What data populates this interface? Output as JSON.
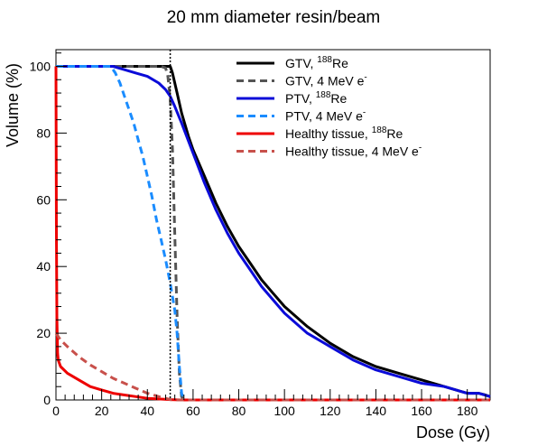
{
  "chart_data": {
    "type": "line",
    "title": "20 mm diameter resin/beam",
    "xlabel": "Dose (Gy)",
    "ylabel": "Volume (%)",
    "xlim": [
      0,
      190
    ],
    "ylim": [
      0,
      105
    ],
    "x_ticks": [
      0,
      20,
      40,
      60,
      80,
      100,
      120,
      140,
      160,
      180
    ],
    "y_ticks": [
      0,
      20,
      40,
      60,
      80,
      100
    ],
    "legend_position": "top-right",
    "reference_line": {
      "x": 50,
      "style": "dotted",
      "color": "#000000"
    },
    "series": [
      {
        "name": "GTV, ¹⁸⁸Re",
        "legend": {
          "pre": "GTV, ",
          "sup": "188",
          "post": "Re"
        },
        "color": "#000000",
        "dash": "solid",
        "points": [
          [
            0,
            100
          ],
          [
            49,
            100
          ],
          [
            50,
            100
          ],
          [
            51,
            98
          ],
          [
            53,
            92
          ],
          [
            55,
            86
          ],
          [
            58,
            79
          ],
          [
            60,
            75
          ],
          [
            65,
            67
          ],
          [
            70,
            59
          ],
          [
            75,
            52
          ],
          [
            80,
            46
          ],
          [
            85,
            41
          ],
          [
            90,
            36
          ],
          [
            95,
            32
          ],
          [
            100,
            28
          ],
          [
            110,
            22
          ],
          [
            120,
            17
          ],
          [
            130,
            13
          ],
          [
            140,
            10
          ],
          [
            150,
            8
          ],
          [
            160,
            6
          ],
          [
            170,
            4
          ],
          [
            180,
            2
          ],
          [
            185,
            2
          ],
          [
            188,
            1.5
          ],
          [
            190,
            1
          ]
        ]
      },
      {
        "name": "GTV, 4 MeV e⁻",
        "legend": {
          "pre": "GTV, 4 MeV e",
          "sup": "-",
          "post": ""
        },
        "color": "#555555",
        "dash": "dashed",
        "points": [
          [
            0,
            100
          ],
          [
            46,
            100
          ],
          [
            48,
            99.5
          ],
          [
            49,
            97
          ],
          [
            50,
            90
          ],
          [
            51,
            75
          ],
          [
            52,
            50
          ],
          [
            53,
            25
          ],
          [
            54,
            8
          ],
          [
            55,
            1
          ],
          [
            56,
            0
          ],
          [
            190,
            0
          ]
        ]
      },
      {
        "name": "PTV, ¹⁸⁸Re",
        "legend": {
          "pre": "PTV, ",
          "sup": "188",
          "post": "Re"
        },
        "color": "#0b0bd8",
        "dash": "solid",
        "points": [
          [
            0,
            100
          ],
          [
            25,
            100
          ],
          [
            30,
            99
          ],
          [
            35,
            98
          ],
          [
            40,
            97
          ],
          [
            45,
            95
          ],
          [
            48,
            93
          ],
          [
            50,
            91
          ],
          [
            52,
            88
          ],
          [
            55,
            83
          ],
          [
            60,
            74
          ],
          [
            65,
            65
          ],
          [
            70,
            57
          ],
          [
            75,
            50
          ],
          [
            80,
            44
          ],
          [
            85,
            39
          ],
          [
            90,
            34
          ],
          [
            95,
            30
          ],
          [
            100,
            26
          ],
          [
            110,
            20
          ],
          [
            120,
            16
          ],
          [
            130,
            12
          ],
          [
            140,
            9
          ],
          [
            150,
            7
          ],
          [
            160,
            5
          ],
          [
            170,
            4
          ],
          [
            180,
            2
          ],
          [
            185,
            2
          ],
          [
            190,
            1
          ]
        ]
      },
      {
        "name": "PTV, 4 MeV e⁻",
        "legend": {
          "pre": "PTV, 4 MeV e",
          "sup": "-",
          "post": ""
        },
        "color": "#1a8cff",
        "dash": "dashed",
        "points": [
          [
            0,
            100
          ],
          [
            24,
            100
          ],
          [
            26,
            98
          ],
          [
            28,
            95
          ],
          [
            30,
            91
          ],
          [
            32,
            87
          ],
          [
            34,
            83
          ],
          [
            36,
            78
          ],
          [
            38,
            73
          ],
          [
            40,
            67
          ],
          [
            42,
            61
          ],
          [
            44,
            54
          ],
          [
            46,
            48
          ],
          [
            48,
            42
          ],
          [
            50,
            35
          ],
          [
            52,
            27
          ],
          [
            53,
            20
          ],
          [
            54,
            10
          ],
          [
            55,
            2
          ],
          [
            56,
            0
          ],
          [
            190,
            0
          ]
        ]
      },
      {
        "name": "Healthy tissue, ¹⁸⁸Re",
        "legend": {
          "pre": "Healthy tissue, ",
          "sup": "188",
          "post": "Re"
        },
        "color": "#ee0000",
        "dash": "solid",
        "points": [
          [
            0,
            100
          ],
          [
            0.2,
            50
          ],
          [
            0.4,
            25
          ],
          [
            0.7,
            14
          ],
          [
            1,
            12
          ],
          [
            2,
            10
          ],
          [
            5,
            8
          ],
          [
            10,
            6
          ],
          [
            15,
            4
          ],
          [
            20,
            3
          ],
          [
            25,
            2
          ],
          [
            30,
            1.5
          ],
          [
            35,
            1
          ],
          [
            40,
            0.5
          ],
          [
            45,
            0.3
          ],
          [
            50,
            0.1
          ],
          [
            55,
            0
          ],
          [
            190,
            0
          ]
        ]
      },
      {
        "name": "Healthy tissue, 4 MeV e⁻",
        "legend": {
          "pre": "Healthy tissue, 4 MeV e",
          "sup": "-",
          "post": ""
        },
        "color": "#c8504b",
        "dash": "dashed",
        "points": [
          [
            0,
            20
          ],
          [
            2,
            18
          ],
          [
            5,
            16
          ],
          [
            10,
            13
          ],
          [
            15,
            10.5
          ],
          [
            20,
            8.5
          ],
          [
            25,
            6.5
          ],
          [
            30,
            5
          ],
          [
            35,
            3.5
          ],
          [
            40,
            2
          ],
          [
            45,
            1
          ],
          [
            48,
            0.5
          ],
          [
            50,
            0.1
          ],
          [
            52,
            0
          ],
          [
            190,
            0
          ]
        ]
      }
    ]
  }
}
